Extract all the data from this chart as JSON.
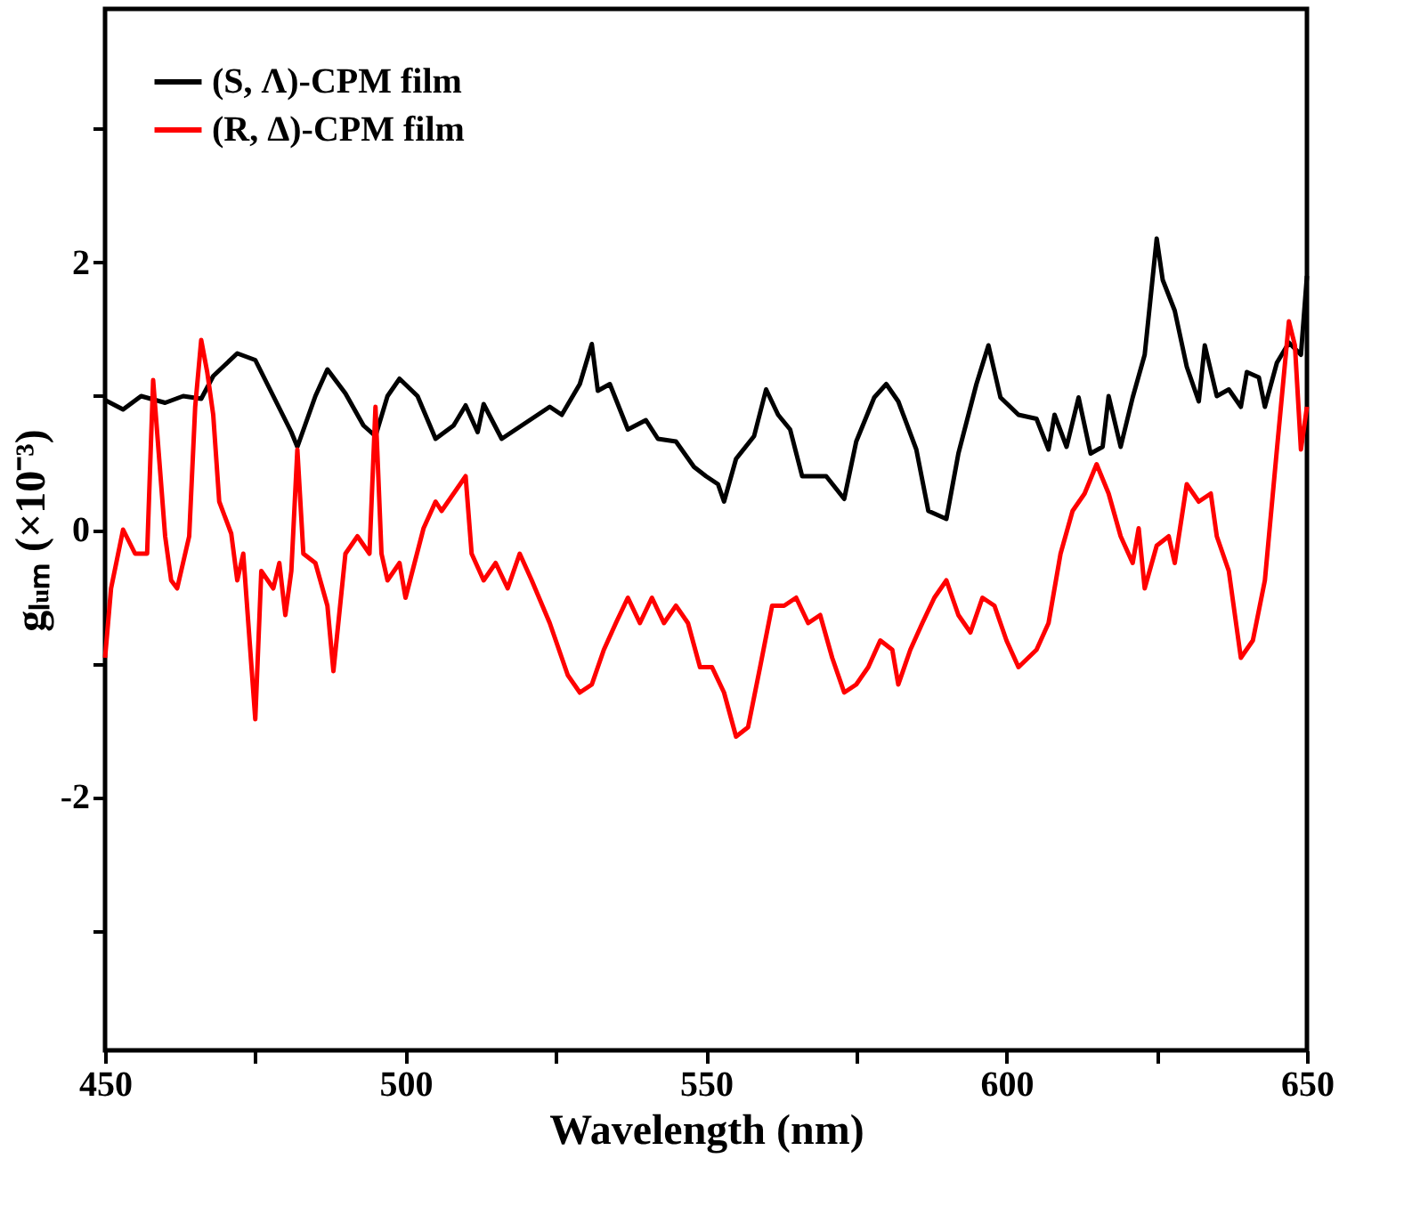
{
  "chart_data": {
    "type": "line",
    "xlabel": "Wavelength (nm)",
    "ylabel": "gₗᵤₘ (×10⁻³)",
    "xlim": [
      450,
      650
    ],
    "ylim": [
      -3.9,
      3.9
    ],
    "xticks": [
      450,
      {
        "value": 475,
        "label": null
      },
      500,
      {
        "value": 525,
        "label": null
      },
      550,
      {
        "value": 575,
        "label": null
      },
      600,
      {
        "value": 625,
        "label": null
      },
      650
    ],
    "yticks": [
      {
        "value": -3,
        "label": null
      },
      -2,
      {
        "value": -1,
        "label": null
      },
      0,
      {
        "value": 1,
        "label": null
      },
      2,
      {
        "value": 3,
        "label": null
      }
    ],
    "grid": false,
    "legend": "top left",
    "marker": "none",
    "line_style": "solid",
    "series": [
      {
        "name": "(S, Λ)-CPM film",
        "color": "#000000",
        "x": [
          450,
          453,
          456,
          460,
          463,
          466,
          468,
          472,
          475,
          478,
          481,
          482,
          485,
          487,
          490,
          493,
          495,
          497,
          499,
          502,
          505,
          508,
          510,
          512,
          513,
          516,
          520,
          524,
          526,
          529,
          531,
          532,
          534,
          537,
          540,
          542,
          545,
          548,
          550,
          552,
          553,
          555,
          558,
          560,
          562,
          564,
          566,
          570,
          573,
          575,
          578,
          580,
          582,
          585,
          587,
          590,
          592,
          595,
          597,
          599,
          602,
          605,
          607,
          608,
          610,
          612,
          614,
          616,
          617,
          619,
          621,
          623,
          625,
          626,
          628,
          630,
          632,
          633,
          635,
          637,
          639,
          640,
          642,
          643,
          645,
          647,
          649,
          650
        ],
        "values": [
          0.97,
          0.9,
          1.0,
          0.95,
          1.0,
          0.98,
          1.15,
          1.32,
          1.27,
          1.0,
          0.73,
          0.62,
          1.0,
          1.2,
          1.02,
          0.78,
          0.7,
          1.0,
          1.13,
          1.0,
          0.68,
          0.78,
          0.93,
          0.73,
          0.94,
          0.68,
          0.8,
          0.92,
          0.86,
          1.09,
          1.39,
          1.04,
          1.09,
          0.75,
          0.82,
          0.68,
          0.66,
          0.47,
          0.4,
          0.34,
          0.21,
          0.53,
          0.7,
          1.05,
          0.86,
          0.75,
          0.4,
          0.4,
          0.23,
          0.66,
          0.99,
          1.09,
          0.96,
          0.6,
          0.14,
          0.08,
          0.57,
          1.09,
          1.38,
          0.99,
          0.86,
          0.83,
          0.6,
          0.86,
          0.62,
          0.99,
          0.57,
          0.62,
          1.0,
          0.62,
          0.99,
          1.31,
          2.18,
          1.87,
          1.64,
          1.22,
          0.96,
          1.38,
          1.0,
          1.05,
          0.92,
          1.18,
          1.14,
          0.92,
          1.25,
          1.4,
          1.31,
          1.9
        ]
      },
      {
        "name": "(R, Δ)-CPM film",
        "color": "#ff0000",
        "x": [
          450,
          451,
          453,
          455,
          457,
          458,
          460,
          461,
          462,
          464,
          465,
          466,
          467,
          468,
          469,
          471,
          472,
          473,
          475,
          476,
          478,
          479,
          480,
          481,
          482,
          483,
          485,
          487,
          488,
          490,
          492,
          494,
          495,
          496,
          497,
          499,
          500,
          503,
          505,
          506,
          508,
          510,
          511,
          513,
          515,
          517,
          519,
          521,
          524,
          527,
          529,
          531,
          533,
          535,
          537,
          539,
          541,
          543,
          545,
          547,
          549,
          551,
          553,
          555,
          557,
          559,
          561,
          563,
          565,
          567,
          569,
          571,
          573,
          575,
          577,
          579,
          581,
          582,
          584,
          586,
          588,
          590,
          592,
          594,
          596,
          598,
          600,
          602,
          605,
          607,
          609,
          611,
          613,
          615,
          617,
          619,
          621,
          622,
          623,
          625,
          627,
          628,
          630,
          632,
          634,
          635,
          637,
          639,
          641,
          643,
          645,
          647,
          648,
          649,
          650
        ],
        "values": [
          -0.96,
          -0.44,
          0,
          -0.18,
          -0.18,
          1.12,
          -0.05,
          -0.38,
          -0.44,
          -0.05,
          0.92,
          1.42,
          1.18,
          0.86,
          0.21,
          -0.03,
          -0.38,
          -0.18,
          -1.42,
          -0.31,
          -0.44,
          -0.25,
          -0.64,
          -0.31,
          0.6,
          -0.18,
          -0.25,
          -0.57,
          -1.06,
          -0.18,
          -0.05,
          -0.18,
          0.92,
          -0.18,
          -0.38,
          -0.25,
          -0.51,
          0.01,
          0.21,
          0.14,
          0.27,
          0.4,
          -0.18,
          -0.38,
          -0.25,
          -0.44,
          -0.18,
          -0.38,
          -0.7,
          -1.09,
          -1.22,
          -1.16,
          -0.9,
          -0.7,
          -0.51,
          -0.7,
          -0.51,
          -0.7,
          -0.57,
          -0.7,
          -1.03,
          -1.03,
          -1.22,
          -1.55,
          -1.48,
          -1.03,
          -0.57,
          -0.57,
          -0.51,
          -0.7,
          -0.64,
          -0.96,
          -1.22,
          -1.16,
          -1.03,
          -0.83,
          -0.9,
          -1.16,
          -0.9,
          -0.7,
          -0.51,
          -0.38,
          -0.64,
          -0.77,
          -0.51,
          -0.57,
          -0.83,
          -1.03,
          -0.9,
          -0.7,
          -0.18,
          0.14,
          0.27,
          0.49,
          0.27,
          -0.05,
          -0.25,
          0.01,
          -0.44,
          -0.12,
          -0.05,
          -0.25,
          0.34,
          0.21,
          0.27,
          -0.05,
          -0.31,
          -0.96,
          -0.83,
          -0.38,
          0.6,
          1.56,
          1.38,
          0.6,
          0.92
        ]
      }
    ]
  }
}
